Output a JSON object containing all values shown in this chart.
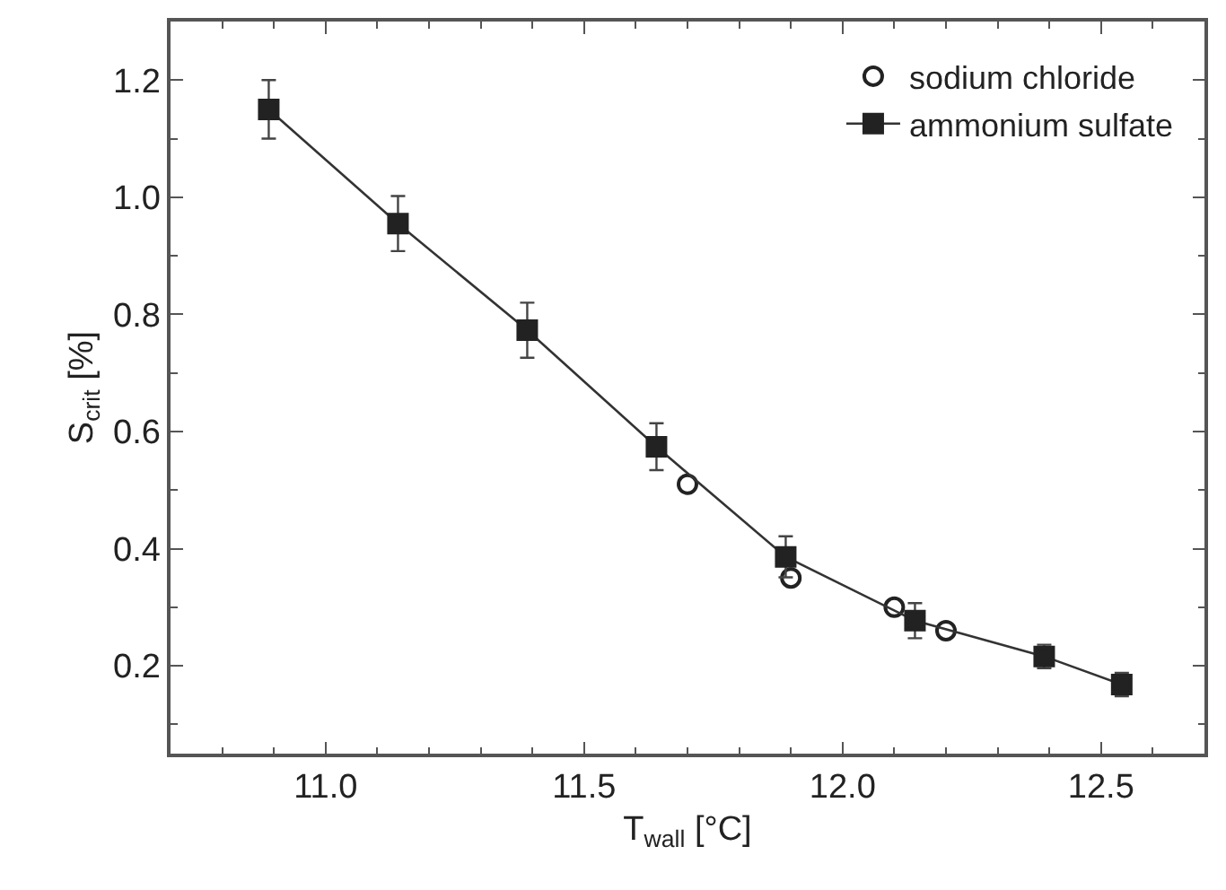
{
  "chart_data": {
    "type": "scatter",
    "xlabel": "T$_{wall}$ [°C]",
    "ylabel": "S$_{crit}$ [%]",
    "xlim": [
      10.7,
      12.7
    ],
    "ylim": [
      0.05,
      1.3
    ],
    "xticks": [
      {
        "value": 10.8,
        "label": null
      },
      {
        "value": 10.9,
        "label": null
      },
      "11.0",
      {
        "value": 11.1,
        "label": null
      },
      {
        "value": 11.2,
        "label": null
      },
      {
        "value": 11.3,
        "label": null
      },
      {
        "value": 11.4,
        "label": null
      },
      {
        "value": 11.5,
        "label": "11.5"
      },
      {
        "value": 11.6,
        "label": null
      },
      {
        "value": 11.7,
        "label": null
      },
      {
        "value": 11.8,
        "label": null
      },
      {
        "value": 11.9,
        "label": null
      },
      {
        "value": 12.0,
        "label": "12.0"
      },
      {
        "value": 12.1,
        "label": null
      },
      {
        "value": 12.2,
        "label": null
      },
      {
        "value": 12.3,
        "label": null
      },
      {
        "value": 12.4,
        "label": null
      },
      {
        "value": 12.5,
        "label": "12.5"
      },
      {
        "value": 12.6,
        "label": null
      }
    ],
    "yticks": [
      {
        "value": 0.1,
        "label": null
      },
      {
        "value": 0.2,
        "label": "0.2"
      },
      {
        "value": 0.3,
        "label": null
      },
      {
        "value": 0.4,
        "label": "0.4"
      },
      {
        "value": 0.5,
        "label": null
      },
      {
        "value": 0.6,
        "label": "0.6"
      },
      {
        "value": 0.7,
        "label": null
      },
      {
        "value": 0.8,
        "label": "0.8"
      },
      {
        "value": 0.9,
        "label": null
      },
      {
        "value": 1.0,
        "label": "1.0"
      },
      {
        "value": 1.1,
        "label": null
      },
      {
        "value": 1.2,
        "label": "1.2"
      }
    ],
    "legend": "top right",
    "series": [
      {
        "name": "sodium chloride",
        "marker": "circle",
        "color": "#222222",
        "x": [
          11.7,
          11.9,
          12.1,
          12.2
        ],
        "values": [
          0.51,
          0.35,
          0.3,
          0.26
        ]
      },
      {
        "name": "ammonium sulfate",
        "type": "line",
        "marker": "square",
        "color": "#222222",
        "x": [
          10.89,
          11.14,
          11.39,
          11.64,
          11.89,
          12.14,
          12.39,
          12.54
        ],
        "values": [
          1.15,
          0.955,
          0.773,
          0.574,
          0.386,
          0.277,
          0.216,
          0.168
        ],
        "errors": [
          0.05,
          0.047,
          0.047,
          0.04,
          0.035,
          0.03,
          0.02,
          0.02
        ]
      }
    ]
  }
}
